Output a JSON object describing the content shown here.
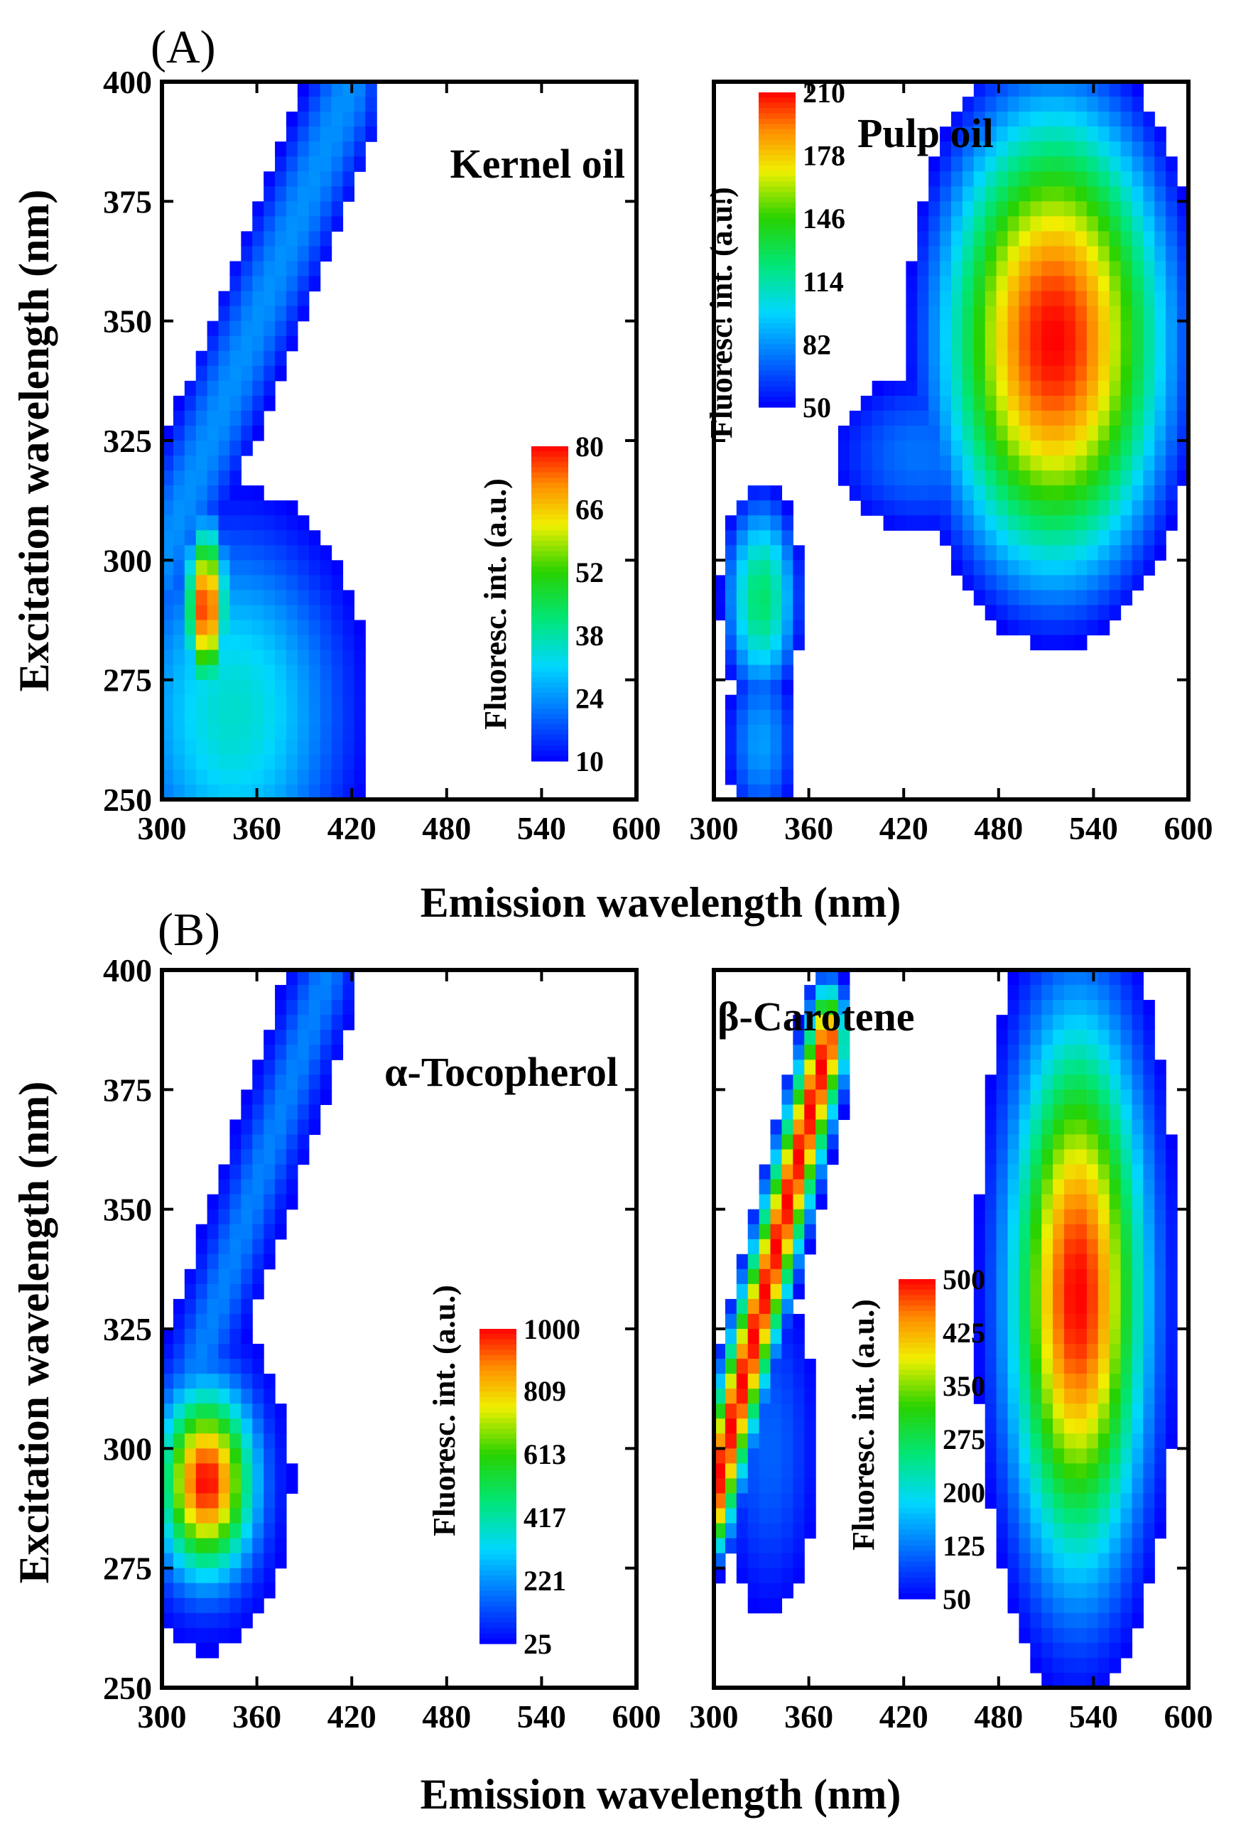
{
  "figure": {
    "section_A_label": "(A)",
    "section_B_label": "(B)",
    "xlabel": "Emission wavelength (nm)",
    "ylabel": "Excitation wavelength (nm)"
  },
  "chart_data": [
    {
      "type": "heatmap",
      "section": "A",
      "title": "Kernel oil",
      "xlabel": "Emission wavelength (nm)",
      "ylabel": "Excitation wavelength (nm)",
      "xlim": [
        300,
        600
      ],
      "ylim": [
        250,
        400
      ],
      "xticks": [
        300,
        360,
        420,
        480,
        540,
        600
      ],
      "yticks": [
        250,
        275,
        300,
        325,
        350,
        375,
        400
      ],
      "colorbar": {
        "label": "Fluoresc. int. (a.u.)",
        "ticks": [
          10,
          24,
          38,
          52,
          66,
          80
        ],
        "range": [
          10,
          80
        ]
      },
      "features": [
        {
          "kind": "peak",
          "emission": 328,
          "excitation": 290,
          "intensity": 80,
          "sx": 9,
          "sy": 12
        },
        {
          "kind": "broad",
          "emission": 345,
          "excitation": 268,
          "intensity": 35,
          "sx": 55,
          "sy": 30
        },
        {
          "kind": "band",
          "emission_start": 300,
          "excitation_start": 300,
          "emission_end": 420,
          "excitation_end": 400,
          "intensity": 24,
          "width": 14
        }
      ]
    },
    {
      "type": "heatmap",
      "section": "A",
      "title": "Pulp oil",
      "xlabel": "Emission wavelength (nm)",
      "ylabel": "Excitation wavelength (nm)",
      "xlim": [
        300,
        600
      ],
      "ylim": [
        250,
        400
      ],
      "xticks": [
        300,
        360,
        420,
        480,
        540,
        600
      ],
      "yticks": [
        250,
        275,
        300,
        325,
        350,
        375,
        400
      ],
      "colorbar": {
        "label": "Fluoresc. int. (a.u.)",
        "ticks": [
          50,
          82,
          114,
          146,
          178,
          210
        ],
        "range": [
          50,
          210
        ]
      },
      "features": [
        {
          "kind": "peak",
          "emission": 515,
          "excitation": 346,
          "intensity": 210,
          "sx": 55,
          "sy": 38
        },
        {
          "kind": "peak",
          "emission": 330,
          "excitation": 292,
          "intensity": 125,
          "sx": 20,
          "sy": 18
        },
        {
          "kind": "broad",
          "emission": 330,
          "excitation": 262,
          "intensity": 85,
          "sx": 22,
          "sy": 18
        },
        {
          "kind": "broad",
          "emission": 430,
          "excitation": 322,
          "intensity": 75,
          "sx": 60,
          "sy": 18
        }
      ]
    },
    {
      "type": "heatmap",
      "section": "B",
      "title": "α-Tocopherol",
      "xlabel": "Emission wavelength (nm)",
      "ylabel": "Excitation wavelength (nm)",
      "xlim": [
        300,
        600
      ],
      "ylim": [
        250,
        400
      ],
      "xticks": [
        300,
        360,
        420,
        480,
        540,
        600
      ],
      "yticks": [
        250,
        275,
        300,
        325,
        350,
        375,
        400
      ],
      "colorbar": {
        "label": "Fluoresc. int. (a.u.)",
        "ticks": [
          25,
          221,
          417,
          613,
          809,
          1000
        ],
        "range": [
          25,
          1000
        ]
      },
      "features": [
        {
          "kind": "peak",
          "emission": 328,
          "excitation": 293,
          "intensity": 1000,
          "sx": 20,
          "sy": 13
        },
        {
          "kind": "band",
          "emission_start": 315,
          "excitation_start": 310,
          "emission_end": 405,
          "excitation_end": 400,
          "intensity": 200,
          "width": 9
        }
      ]
    },
    {
      "type": "heatmap",
      "section": "B",
      "title": "β-Carotene",
      "xlabel": "Emission wavelength (nm)",
      "ylabel": "Excitation wavelength (nm)",
      "xlim": [
        300,
        600
      ],
      "ylim": [
        250,
        400
      ],
      "xticks": [
        300,
        360,
        420,
        480,
        540,
        600
      ],
      "yticks": [
        250,
        275,
        300,
        325,
        350,
        375,
        400
      ],
      "colorbar": {
        "label": "Fluoresc. int. (a.u.)",
        "ticks": [
          50,
          125,
          200,
          275,
          350,
          425,
          500
        ],
        "range": [
          50,
          500
        ]
      },
      "features": [
        {
          "kind": "peak",
          "emission": 530,
          "excitation": 332,
          "intensity": 500,
          "sx": 30,
          "sy": 40
        },
        {
          "kind": "band",
          "emission_start": 300,
          "excitation_start": 290,
          "emission_end": 372,
          "excitation_end": 385,
          "intensity": 500,
          "width": 8
        },
        {
          "kind": "broad",
          "emission": 335,
          "excitation": 300,
          "intensity": 110,
          "sx": 25,
          "sy": 28
        }
      ]
    }
  ]
}
